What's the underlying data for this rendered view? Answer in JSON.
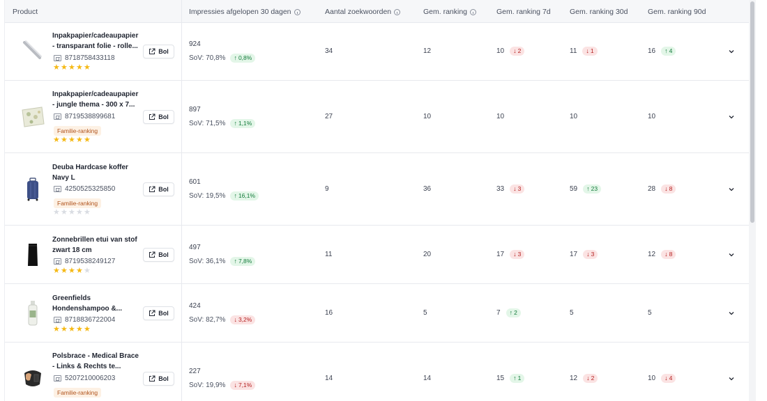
{
  "headers": {
    "product": "Product",
    "impressions": "Impressies afgelopen 30 dagen",
    "keywords": "Aantal zoekwoorden",
    "avg_rank": "Gem. ranking",
    "avg_rank_7d": "Gem. ranking 7d",
    "avg_rank_30d": "Gem. ranking 30d",
    "avg_rank_90d": "Gem. ranking 90d"
  },
  "labels": {
    "bol_button": "Bol",
    "family_badge": "Familie-ranking",
    "sov_prefix": "SoV:"
  },
  "colors": {
    "star_on": "#f5b915",
    "star_off": "#d9dce2",
    "up": "#137a3a",
    "down": "#b42020",
    "family": "#b0531c"
  },
  "rows": [
    {
      "name_l1": "Inpakpapier/cadeaupapier",
      "name_l2": "- transparant folie - rolle...",
      "ean": "8718758433118",
      "family": false,
      "rating": 5,
      "impressions": "924",
      "sov": "SoV: 70,8%",
      "sov_change": "0,8%",
      "sov_dir": "up",
      "keywords": "34",
      "rank": "12",
      "rank7": "10",
      "rank7_change": "2",
      "rank7_dir": "down",
      "rank30": "11",
      "rank30_change": "1",
      "rank30_dir": "down",
      "rank90": "16",
      "rank90_change": "4",
      "rank90_dir": "up"
    },
    {
      "name_l1": "Inpakpapier/cadeaupapier",
      "name_l2": "- jungle thema - 300 x 7...",
      "ean": "8719538899681",
      "family": true,
      "rating": 5,
      "impressions": "897",
      "sov": "SoV: 71,5%",
      "sov_change": "1,1%",
      "sov_dir": "up",
      "keywords": "27",
      "rank": "10",
      "rank7": "10",
      "rank7_change": "",
      "rank7_dir": "",
      "rank30": "10",
      "rank30_change": "",
      "rank30_dir": "",
      "rank90": "10",
      "rank90_change": "",
      "rank90_dir": ""
    },
    {
      "name_l1": "Deuba Hardcase koffer",
      "name_l2": "Navy L",
      "ean": "4250525325850",
      "family": true,
      "rating": 0,
      "impressions": "601",
      "sov": "SoV: 19,5%",
      "sov_change": "16,1%",
      "sov_dir": "up",
      "keywords": "9",
      "rank": "36",
      "rank7": "33",
      "rank7_change": "3",
      "rank7_dir": "down",
      "rank30": "59",
      "rank30_change": "23",
      "rank30_dir": "up",
      "rank90": "28",
      "rank90_change": "8",
      "rank90_dir": "down"
    },
    {
      "name_l1": "Zonnebrillen etui van stof",
      "name_l2": "zwart 18 cm",
      "ean": "8719538249127",
      "family": false,
      "rating": 4,
      "impressions": "497",
      "sov": "SoV: 36,1%",
      "sov_change": "7,8%",
      "sov_dir": "up",
      "keywords": "11",
      "rank": "20",
      "rank7": "17",
      "rank7_change": "3",
      "rank7_dir": "down",
      "rank30": "17",
      "rank30_change": "3",
      "rank30_dir": "down",
      "rank90": "12",
      "rank90_change": "8",
      "rank90_dir": "down"
    },
    {
      "name_l1": "Greenfields",
      "name_l2": "Hondenshampoo &...",
      "ean": "8718836722004",
      "family": false,
      "rating": 5,
      "impressions": "424",
      "sov": "SoV: 82,7%",
      "sov_change": "3,2%",
      "sov_dir": "down",
      "keywords": "16",
      "rank": "5",
      "rank7": "7",
      "rank7_change": "2",
      "rank7_dir": "up",
      "rank30": "5",
      "rank30_change": "",
      "rank30_dir": "",
      "rank90": "5",
      "rank90_change": "",
      "rank90_dir": ""
    },
    {
      "name_l1": "Polsbrace - Medical Brace",
      "name_l2": "- Links & Rechts te...",
      "ean": "5207210006203",
      "family": true,
      "rating": null,
      "impressions": "227",
      "sov": "SoV: 19,9%",
      "sov_change": "7,1%",
      "sov_dir": "down",
      "keywords": "14",
      "rank": "14",
      "rank7": "15",
      "rank7_change": "1",
      "rank7_dir": "up",
      "rank30": "12",
      "rank30_change": "2",
      "rank30_dir": "down",
      "rank90": "10",
      "rank90_change": "4",
      "rank90_dir": "down"
    }
  ]
}
